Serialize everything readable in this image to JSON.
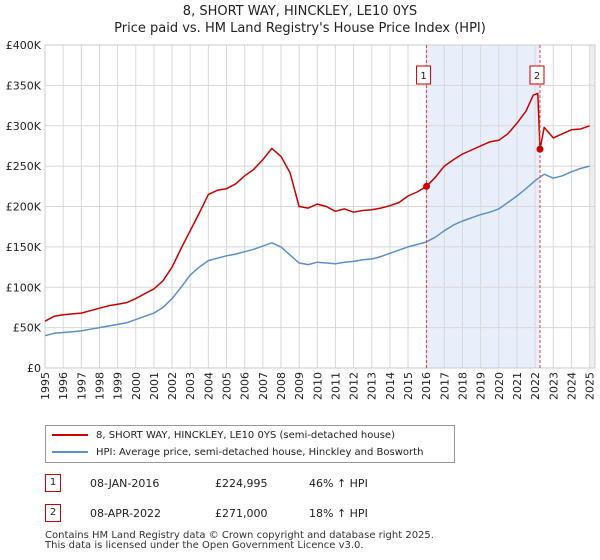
{
  "chart_data": {
    "type": "line",
    "title": "8, SHORT WAY, HINCKLEY, LE10 0YS",
    "subtitle": "Price paid vs. HM Land Registry's House Price Index (HPI)",
    "xlim": [
      1995.0,
      2025.3
    ],
    "ylim": [
      0,
      400000
    ],
    "y_ticks": [
      0,
      50000,
      100000,
      150000,
      200000,
      250000,
      300000,
      350000,
      400000
    ],
    "y_tick_labels": [
      "£0",
      "£50K",
      "£100K",
      "£150K",
      "£200K",
      "£250K",
      "£300K",
      "£350K",
      "£400K"
    ],
    "x_ticks": [
      1995,
      1996,
      1997,
      1998,
      1999,
      2000,
      2001,
      2002,
      2003,
      2004,
      2005,
      2006,
      2007,
      2008,
      2009,
      2010,
      2011,
      2012,
      2013,
      2014,
      2015,
      2016,
      2017,
      2018,
      2019,
      2020,
      2021,
      2022,
      2023,
      2024,
      2025
    ],
    "x_tick_labels": [
      "1995",
      "1996",
      "1997",
      "1998",
      "1999",
      "2000",
      "2001",
      "2002",
      "2003",
      "2004",
      "2005",
      "2006",
      "2007",
      "2008",
      "2009",
      "2010",
      "2011",
      "2012",
      "2013",
      "2014",
      "2015",
      "2016",
      "2017",
      "2018",
      "2019",
      "2020",
      "2021",
      "2022",
      "2023",
      "2024",
      "2025"
    ],
    "shaded_range": [
      2016.02,
      2022.27
    ],
    "series": [
      {
        "name": "8, SHORT WAY, HINCKLEY, LE10 0YS (semi-detached house)",
        "color": "#cc0000",
        "x": [
          1995.0,
          1995.5,
          1996.0,
          1996.5,
          1997.0,
          1997.5,
          1998.0,
          1998.5,
          1999.0,
          1999.5,
          2000.0,
          2000.5,
          2001.0,
          2001.5,
          2002.0,
          2002.5,
          2003.0,
          2003.5,
          2004.0,
          2004.5,
          2005.0,
          2005.5,
          2006.0,
          2006.5,
          2007.0,
          2007.5,
          2008.0,
          2008.5,
          2009.0,
          2009.5,
          2010.0,
          2010.5,
          2011.0,
          2011.5,
          2012.0,
          2012.5,
          2013.0,
          2013.5,
          2014.0,
          2014.5,
          2015.0,
          2015.5,
          2016.02,
          2016.5,
          2017.0,
          2017.5,
          2018.0,
          2018.5,
          2019.0,
          2019.5,
          2020.0,
          2020.5,
          2021.0,
          2021.5,
          2021.9,
          2022.15,
          2022.27,
          2022.5,
          2023.0,
          2023.5,
          2024.0,
          2024.5,
          2025.0
        ],
        "values": [
          58000,
          64000,
          66000,
          67000,
          68000,
          71000,
          74000,
          77000,
          79000,
          81000,
          86000,
          92000,
          98000,
          108000,
          125000,
          148000,
          170000,
          192000,
          215000,
          220000,
          222000,
          228000,
          238000,
          246000,
          258000,
          272000,
          262000,
          242000,
          200000,
          198000,
          203000,
          200000,
          194000,
          197000,
          193000,
          195000,
          196000,
          198000,
          201000,
          205000,
          213000,
          218000,
          224995,
          236000,
          250000,
          258000,
          265000,
          270000,
          275000,
          280000,
          282000,
          290000,
          303000,
          318000,
          338000,
          340000,
          271000,
          298000,
          285000,
          290000,
          295000,
          296000,
          300000
        ]
      },
      {
        "name": "HPI: Average price, semi-detached house, Hinckley and Bosworth",
        "color": "#5b8fcf",
        "x": [
          1995.0,
          1995.5,
          1996.0,
          1996.5,
          1997.0,
          1997.5,
          1998.0,
          1998.5,
          1999.0,
          1999.5,
          2000.0,
          2000.5,
          2001.0,
          2001.5,
          2002.0,
          2002.5,
          2003.0,
          2003.5,
          2004.0,
          2004.5,
          2005.0,
          2005.5,
          2006.0,
          2006.5,
          2007.0,
          2007.5,
          2008.0,
          2008.5,
          2009.0,
          2009.5,
          2010.0,
          2010.5,
          2011.0,
          2011.5,
          2012.0,
          2012.5,
          2013.0,
          2013.5,
          2014.0,
          2014.5,
          2015.0,
          2015.5,
          2016.0,
          2016.5,
          2017.0,
          2017.5,
          2018.0,
          2018.5,
          2019.0,
          2019.5,
          2020.0,
          2020.5,
          2021.0,
          2021.5,
          2022.0,
          2022.5,
          2023.0,
          2023.5,
          2024.0,
          2024.5,
          2025.0
        ],
        "values": [
          40000,
          43000,
          44000,
          45000,
          46000,
          48000,
          50000,
          52000,
          54000,
          56000,
          60000,
          64000,
          68000,
          75000,
          86000,
          100000,
          115000,
          125000,
          133000,
          136000,
          139000,
          141000,
          144000,
          147000,
          151000,
          155000,
          150000,
          140000,
          130000,
          128000,
          131000,
          130000,
          129000,
          131000,
          132000,
          134000,
          135000,
          138000,
          142000,
          146000,
          150000,
          153000,
          156000,
          162000,
          170000,
          177000,
          182000,
          186000,
          190000,
          193000,
          197000,
          205000,
          213000,
          222000,
          232000,
          240000,
          235000,
          238000,
          243000,
          247000,
          250000
        ]
      }
    ],
    "annotations": [
      {
        "label": "1",
        "x": 2016.02,
        "value": 224995
      },
      {
        "label": "2",
        "x": 2022.27,
        "value": 271000
      }
    ]
  },
  "legend": {
    "items": [
      {
        "label": "8, SHORT WAY, HINCKLEY, LE10 0YS (semi-detached house)",
        "color": "#cc0000"
      },
      {
        "label": "HPI: Average price, semi-detached house, Hinckley and Bosworth",
        "color": "#5b8fcf"
      }
    ]
  },
  "transactions": [
    {
      "num": "1",
      "date": "08-JAN-2016",
      "price": "£224,995",
      "change": "46% ↑ HPI"
    },
    {
      "num": "2",
      "date": "08-APR-2022",
      "price": "£271,000",
      "change": "18% ↑ HPI"
    }
  ],
  "footer": {
    "line1": "Contains HM Land Registry data © Crown copyright and database right 2025.",
    "line2": "This data is licensed under the Open Government Licence v3.0."
  }
}
